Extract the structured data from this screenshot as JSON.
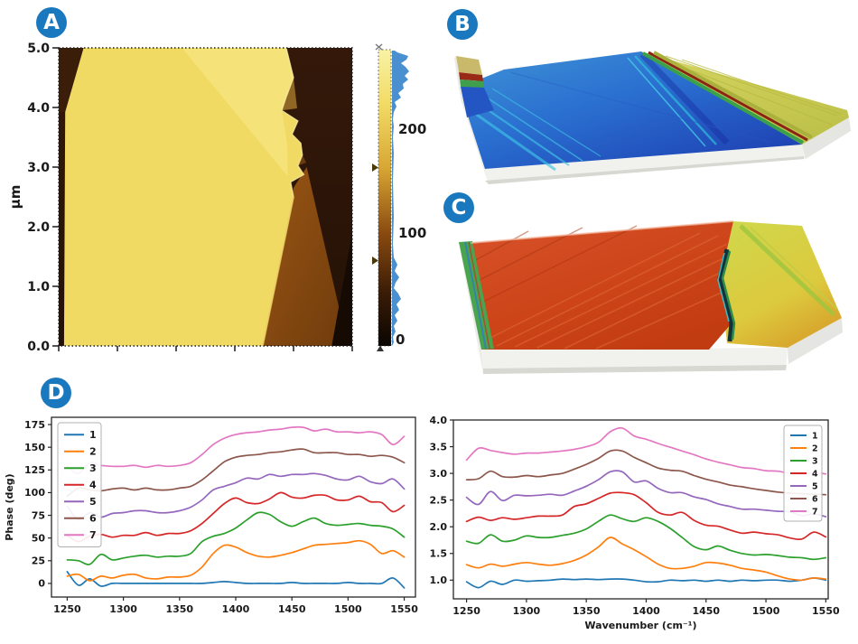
{
  "figure": {
    "background": "#ffffff",
    "badge_color": "#1a78be"
  },
  "badges": {
    "a": "A",
    "b": "B",
    "c": "C",
    "d": "D"
  },
  "panel_a": {
    "y_axis_label": "μm",
    "y_tick_labels": [
      "5.0",
      "4.0",
      "3.0",
      "2.0",
      "1.0",
      "0.0"
    ],
    "colorbar_tick_labels": [
      "200",
      "100",
      "0"
    ]
  },
  "chart_data": [
    {
      "type": "line",
      "title": "",
      "xlabel": "",
      "ylabel": "Phase (deg)",
      "xlim": [
        1236,
        1560
      ],
      "ylim": [
        -15,
        183
      ],
      "grid": false,
      "legend_position": "upper-left",
      "x_ticks": [
        1250,
        1300,
        1350,
        1400,
        1450,
        1500,
        1550
      ],
      "x_tick_labels": [
        "1250",
        "1300",
        "1350",
        "1400",
        "1450",
        "1500",
        "1550"
      ],
      "y_ticks": [
        0,
        25,
        50,
        75,
        100,
        125,
        150,
        175
      ],
      "y_tick_labels": [
        "0",
        "25",
        "50",
        "75",
        "100",
        "125",
        "150",
        "175"
      ],
      "x": [
        1250,
        1260,
        1270,
        1280,
        1290,
        1300,
        1310,
        1320,
        1330,
        1340,
        1350,
        1360,
        1370,
        1380,
        1390,
        1400,
        1410,
        1420,
        1430,
        1440,
        1450,
        1460,
        1470,
        1480,
        1490,
        1500,
        1510,
        1520,
        1530,
        1540,
        1550
      ],
      "series": [
        {
          "name": "1",
          "color": "#1f77b4",
          "values": [
            13,
            -2,
            5,
            -3,
            0,
            0,
            0,
            0,
            0,
            0,
            0,
            0,
            0,
            1,
            2,
            1,
            0,
            0,
            0,
            0,
            1,
            0,
            0,
            0,
            0,
            1,
            0,
            0,
            0,
            6,
            -5
          ]
        },
        {
          "name": "2",
          "color": "#ff7f0e",
          "values": [
            8,
            10,
            3,
            8,
            6,
            9,
            10,
            6,
            5,
            7,
            7,
            9,
            18,
            33,
            42,
            40,
            34,
            30,
            29,
            31,
            34,
            38,
            42,
            43,
            44,
            45,
            47,
            43,
            33,
            36,
            29
          ]
        },
        {
          "name": "3",
          "color": "#2ca02c",
          "values": [
            26,
            25,
            21,
            32,
            26,
            28,
            30,
            31,
            29,
            30,
            30,
            33,
            46,
            52,
            55,
            61,
            70,
            78,
            76,
            68,
            63,
            68,
            72,
            66,
            64,
            65,
            66,
            64,
            63,
            60,
            51
          ]
        },
        {
          "name": "4",
          "color": "#d62728",
          "values": [
            53,
            46,
            52,
            54,
            51,
            53,
            53,
            56,
            53,
            55,
            55,
            58,
            66,
            77,
            88,
            94,
            89,
            88,
            93,
            100,
            95,
            94,
            97,
            97,
            92,
            92,
            96,
            90,
            89,
            79,
            86
          ]
        },
        {
          "name": "5",
          "color": "#9467bd",
          "values": [
            85,
            70,
            78,
            73,
            77,
            78,
            80,
            80,
            78,
            78,
            80,
            84,
            92,
            103,
            107,
            111,
            116,
            115,
            120,
            118,
            120,
            120,
            121,
            119,
            115,
            114,
            118,
            112,
            110,
            115,
            104
          ]
        },
        {
          "name": "6",
          "color": "#8c564b",
          "values": [
            96,
            105,
            103,
            102,
            104,
            105,
            103,
            105,
            103,
            103,
            105,
            107,
            114,
            124,
            134,
            139,
            141,
            142,
            144,
            145,
            147,
            148,
            144,
            144,
            144,
            142,
            142,
            140,
            141,
            139,
            133
          ]
        },
        {
          "name": "7",
          "color": "#e377c2",
          "values": [
            129,
            121,
            133,
            130,
            129,
            129,
            130,
            128,
            130,
            129,
            130,
            133,
            142,
            153,
            160,
            164,
            166,
            167,
            169,
            170,
            172,
            172,
            168,
            170,
            167,
            167,
            166,
            167,
            164,
            153,
            162
          ]
        }
      ]
    },
    {
      "type": "line",
      "title": "",
      "xlabel": "Wavenumber (cm⁻¹)",
      "ylabel": "",
      "xlim": [
        1239,
        1552
      ],
      "ylim": [
        0.65,
        4.0
      ],
      "grid": false,
      "legend_position": "upper-right",
      "x_ticks": [
        1250,
        1300,
        1350,
        1400,
        1450,
        1500,
        1550
      ],
      "x_tick_labels": [
        "1250",
        "1300",
        "1350",
        "1400",
        "1450",
        "1500",
        "1550"
      ],
      "y_ticks": [
        1.0,
        1.5,
        2.0,
        2.5,
        3.0,
        3.5,
        4.0
      ],
      "y_tick_labels": [
        "1.0",
        "1.5",
        "2.0",
        "2.5",
        "3.0",
        "3.5",
        "4.0"
      ],
      "x": [
        1250,
        1260,
        1270,
        1280,
        1290,
        1300,
        1310,
        1320,
        1330,
        1340,
        1350,
        1360,
        1370,
        1380,
        1390,
        1400,
        1410,
        1420,
        1430,
        1440,
        1450,
        1460,
        1470,
        1480,
        1490,
        1500,
        1510,
        1520,
        1530,
        1540,
        1550
      ],
      "series": [
        {
          "name": "1",
          "color": "#1f77b4",
          "values": [
            0.97,
            0.86,
            0.98,
            0.92,
            1.0,
            0.98,
            0.99,
            1.0,
            1.02,
            1.01,
            1.02,
            1.01,
            1.02,
            1.02,
            1.0,
            0.97,
            0.97,
            1.0,
            0.99,
            1.0,
            0.98,
            1.0,
            0.98,
            1.0,
            0.99,
            1.0,
            1.0,
            0.98,
            1.0,
            1.04,
            1.0
          ]
        },
        {
          "name": "2",
          "color": "#ff7f0e",
          "values": [
            1.29,
            1.23,
            1.3,
            1.26,
            1.3,
            1.33,
            1.3,
            1.28,
            1.31,
            1.37,
            1.47,
            1.62,
            1.8,
            1.68,
            1.57,
            1.44,
            1.3,
            1.22,
            1.22,
            1.26,
            1.33,
            1.32,
            1.28,
            1.22,
            1.19,
            1.15,
            1.08,
            1.02,
            1.0,
            1.04,
            1.02
          ]
        },
        {
          "name": "3",
          "color": "#2ca02c",
          "values": [
            1.73,
            1.69,
            1.85,
            1.73,
            1.75,
            1.83,
            1.8,
            1.8,
            1.84,
            1.88,
            1.96,
            2.1,
            2.22,
            2.15,
            2.1,
            2.17,
            2.1,
            1.97,
            1.8,
            1.63,
            1.57,
            1.64,
            1.56,
            1.5,
            1.47,
            1.48,
            1.46,
            1.43,
            1.42,
            1.39,
            1.42
          ]
        },
        {
          "name": "4",
          "color": "#d62728",
          "values": [
            2.1,
            2.18,
            2.12,
            2.17,
            2.14,
            2.17,
            2.2,
            2.2,
            2.22,
            2.38,
            2.43,
            2.53,
            2.63,
            2.64,
            2.6,
            2.45,
            2.27,
            2.22,
            2.27,
            2.12,
            2.03,
            2.01,
            1.94,
            1.88,
            1.9,
            1.87,
            1.85,
            1.79,
            1.77,
            1.9,
            1.81
          ]
        },
        {
          "name": "5",
          "color": "#9467bd",
          "values": [
            2.55,
            2.42,
            2.66,
            2.49,
            2.59,
            2.58,
            2.59,
            2.61,
            2.59,
            2.67,
            2.76,
            2.88,
            3.03,
            3.03,
            2.84,
            2.86,
            2.72,
            2.64,
            2.64,
            2.56,
            2.51,
            2.43,
            2.38,
            2.33,
            2.33,
            2.31,
            2.29,
            2.28,
            2.21,
            2.24,
            2.19
          ]
        },
        {
          "name": "6",
          "color": "#8c564b",
          "values": [
            2.88,
            2.9,
            3.04,
            2.94,
            2.93,
            2.96,
            2.94,
            2.97,
            3.0,
            3.08,
            3.17,
            3.28,
            3.42,
            3.42,
            3.3,
            3.2,
            3.1,
            3.06,
            3.04,
            2.96,
            2.89,
            2.84,
            2.78,
            2.75,
            2.71,
            2.68,
            2.65,
            2.63,
            2.62,
            2.61,
            2.6
          ]
        },
        {
          "name": "7",
          "color": "#e377c2",
          "values": [
            3.25,
            3.47,
            3.43,
            3.39,
            3.36,
            3.38,
            3.38,
            3.4,
            3.42,
            3.45,
            3.5,
            3.58,
            3.78,
            3.85,
            3.7,
            3.64,
            3.56,
            3.49,
            3.42,
            3.35,
            3.27,
            3.21,
            3.16,
            3.11,
            3.09,
            3.05,
            3.04,
            3.0,
            2.98,
            3.01,
            2.99
          ]
        }
      ]
    }
  ]
}
